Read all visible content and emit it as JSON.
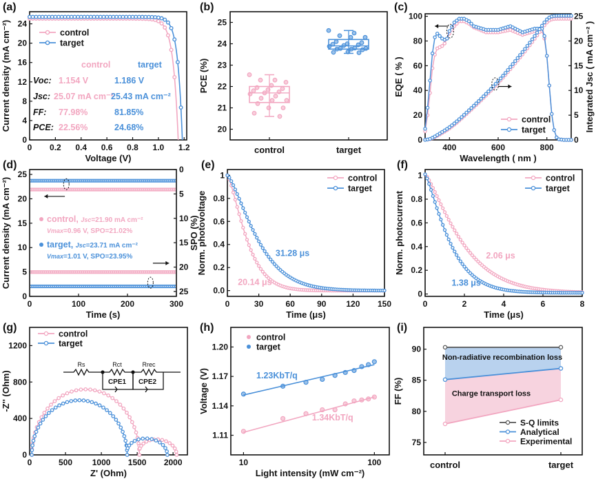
{
  "colors": {
    "control": "#f2a6c0",
    "target": "#4a90d9",
    "axis": "#111111",
    "sq": "#555555",
    "fill_blue": "#b9d2ee",
    "fill_pink": "#f7d3df"
  },
  "chart_data": [
    {
      "panel": "(a)",
      "type": "line",
      "xlabel": "Voltage (V)",
      "ylabel": "Current density (mA cm⁻²)",
      "xlim": [
        0,
        1.22
      ],
      "ylim": [
        0,
        26.5
      ],
      "xticks": [
        "0",
        "0.2",
        "0.4",
        "0.6",
        "0.8",
        "1.0",
        "1.2"
      ],
      "xtick_values": [
        0,
        0.2,
        0.4,
        0.6,
        0.8,
        1.0,
        1.2
      ],
      "yticks": [
        "0",
        "4",
        "8",
        "12",
        "16",
        "20",
        "24"
      ],
      "ytick_values": [
        0,
        4,
        8,
        12,
        16,
        20,
        24
      ],
      "legend": [
        "control",
        "target"
      ],
      "legend_position": "top-left",
      "series": [
        {
          "name": "control",
          "jsc": 25.07,
          "voc": 1.154,
          "ff": 77.98
        },
        {
          "name": "target",
          "jsc": 25.43,
          "voc": 1.186,
          "ff": 81.85
        }
      ],
      "table": {
        "headers": [
          "",
          "control",
          "target"
        ],
        "rows": [
          {
            "label": "Voc:",
            "control": "1.154 V",
            "target": "1.186 V"
          },
          {
            "label": "Jsc:",
            "control": "25.07 mA cm⁻²",
            "target": "25.43 mA cm⁻²"
          },
          {
            "label": "FF:",
            "control": "77.98%",
            "target": "81.85%"
          },
          {
            "label": "PCE:",
            "control": "22.56%",
            "target": "24.68%"
          }
        ]
      }
    },
    {
      "panel": "(b)",
      "type": "scatter",
      "ylabel": "PCE (%)",
      "ylim": [
        19.5,
        25.5
      ],
      "categories": [
        "control",
        "target"
      ],
      "yticks": [
        "20",
        "21",
        "22",
        "23",
        "24",
        "25"
      ],
      "ytick_values": [
        20,
        21,
        22,
        23,
        24,
        25
      ],
      "boxes": [
        {
          "name": "control",
          "q1": 21.25,
          "median": 21.7,
          "q3": 22.0,
          "min": 20.6,
          "max": 22.55,
          "points": [
            22.55,
            22.3,
            22.3,
            22.2,
            22.05,
            21.95,
            21.9,
            21.85,
            21.8,
            21.75,
            21.7,
            21.65,
            21.55,
            21.45,
            21.35,
            21.35,
            21.2,
            21.0,
            21.0,
            20.75,
            20.6
          ]
        },
        {
          "name": "target",
          "q1": 23.75,
          "median": 23.9,
          "q3": 24.2,
          "min": 23.55,
          "max": 24.62,
          "points": [
            24.62,
            24.5,
            24.38,
            24.3,
            24.3,
            24.1,
            24.05,
            24.0,
            23.98,
            23.95,
            23.92,
            23.88,
            23.8,
            23.78,
            23.78,
            23.75,
            23.75,
            23.72,
            23.62,
            23.6,
            23.58
          ]
        }
      ]
    },
    {
      "panel": "(c)",
      "type": "line",
      "xlabel": "Wavelength ( nm )",
      "ylabel": "EQE ( % )",
      "ylabel_right": "Integrated Jsc ( mA cm⁻² )",
      "xlim": [
        300,
        900
      ],
      "ylim": [
        0,
        102
      ],
      "ylim_right": [
        0,
        25.5
      ],
      "xticks": [
        "400",
        "600",
        "800"
      ],
      "xtick_values": [
        400,
        600,
        800
      ],
      "yticks": [
        "0",
        "20",
        "40",
        "60",
        "80",
        "100"
      ],
      "ytick_values": [
        0,
        20,
        40,
        60,
        80,
        100
      ],
      "yticks_right": [
        "0",
        "5",
        "10",
        "15",
        "20",
        "25"
      ],
      "ytick_values_right": [
        0,
        5,
        10,
        15,
        20,
        25
      ],
      "legend": [
        "control",
        "target"
      ],
      "legend_position": "bottom-right",
      "eqe_x": [
        300,
        310,
        320,
        330,
        340,
        350,
        360,
        370,
        380,
        390,
        400,
        420,
        440,
        460,
        480,
        500,
        550,
        600,
        650,
        700,
        750,
        780,
        790,
        800,
        810,
        820,
        830,
        840,
        850,
        870,
        900
      ],
      "series": [
        {
          "name": "control EQE",
          "values": [
            7,
            20,
            38,
            58,
            69,
            74,
            75,
            76,
            78,
            82,
            86,
            92,
            96,
            96,
            94,
            91,
            87,
            87,
            89,
            85,
            88,
            88,
            82,
            68,
            44,
            21,
            8,
            2,
            0.5,
            0,
            0
          ]
        },
        {
          "name": "target EQE",
          "values": [
            9,
            26,
            48,
            70,
            83,
            86,
            84,
            82,
            81,
            82,
            88,
            95,
            98,
            98,
            96,
            92,
            89,
            89,
            92,
            87,
            90,
            90,
            84,
            68,
            44,
            21,
            8,
            2,
            0.5,
            0,
            0
          ]
        }
      ],
      "integrated": [
        {
          "name": "control Jsc",
          "final": 24.5
        },
        {
          "name": "target Jsc",
          "final": 25.1
        }
      ]
    },
    {
      "panel": "(d)",
      "type": "line",
      "xlabel": "Time (s)",
      "ylabel": "Current density (mA cm⁻²)",
      "ylabel_right": "SPO (%)",
      "xlim": [
        0,
        300
      ],
      "ylim": [
        0,
        26
      ],
      "ylim_right": [
        26,
        0
      ],
      "xticks": [
        "0",
        "100",
        "200",
        "300"
      ],
      "xtick_values": [
        0,
        100,
        200,
        300
      ],
      "yticks": [
        "0",
        "5",
        "10",
        "15",
        "20",
        "25"
      ],
      "ytick_values": [
        0,
        5,
        10,
        15,
        20,
        25
      ],
      "yticks_right": [
        "0",
        "5",
        "10",
        "15",
        "20",
        "25"
      ],
      "ytick_values_right": [
        0,
        5,
        10,
        15,
        20,
        25
      ],
      "series": [
        {
          "name": "control Jsc",
          "value": 21.9
        },
        {
          "name": "target Jsc",
          "value": 23.71
        },
        {
          "name": "control SPO",
          "value": 21.02
        },
        {
          "name": "target SPO",
          "value": 23.95
        }
      ],
      "annotations": [
        {
          "series": "control",
          "line1_name": "control, ",
          "line1_var": "Jsc",
          "line1_val": "=21.90 mA cm⁻²",
          "line2_var": "Vmax",
          "line2_val": "=0.96 V, SPO=21.02%"
        },
        {
          "series": "target",
          "line1_name": "target, ",
          "line1_var": "Jsc",
          "line1_val": "=23.71 mA cm⁻²",
          "line2_var": "Vmax",
          "line2_val": "=1.01 V, SPO=23.95%"
        }
      ]
    },
    {
      "panel": "(e)",
      "type": "line",
      "xlabel": "Time (μs)",
      "ylabel": "Norm. photovoltage",
      "xlim": [
        0,
        150
      ],
      "ylim": [
        -0.05,
        1.05
      ],
      "xticks": [
        "0",
        "30",
        "60",
        "90",
        "120",
        "150"
      ],
      "xtick_values": [
        0,
        30,
        60,
        90,
        120,
        150
      ],
      "yticks": [
        "0.0",
        "0.2",
        "0.4",
        "0.6",
        "0.8",
        "1"
      ],
      "ytick_values": [
        0,
        0.2,
        0.4,
        0.6,
        0.8,
        1
      ],
      "legend": [
        "control",
        "target"
      ],
      "legend_position": "top-right",
      "series": [
        {
          "name": "control",
          "tau": 20.14,
          "label": "20.14 μs"
        },
        {
          "name": "target",
          "tau": 31.28,
          "label": "31.28 μs"
        }
      ]
    },
    {
      "panel": "(f)",
      "type": "line",
      "xlabel": "Time (μs)",
      "ylabel": "Norm. photocurrent",
      "xlim": [
        0,
        8
      ],
      "ylim": [
        -0.02,
        1.05
      ],
      "xticks": [
        "0",
        "2",
        "4",
        "6",
        "8"
      ],
      "xtick_values": [
        0,
        2,
        4,
        6,
        8
      ],
      "yticks": [
        "0",
        "0.2",
        "0.4",
        "0.6",
        "0.8",
        "1"
      ],
      "ytick_values": [
        0,
        0.2,
        0.4,
        0.6,
        0.8,
        1
      ],
      "legend": [
        "control",
        "target"
      ],
      "legend_position": "top-right",
      "series": [
        {
          "name": "control",
          "tau": 2.06,
          "label": "2.06 μs"
        },
        {
          "name": "target",
          "tau": 1.38,
          "label": "1.38 μs"
        }
      ]
    },
    {
      "panel": "(g)",
      "type": "scatter",
      "xlabel": "Z' (Ohm)",
      "ylabel": "-Z'' (Ohm)",
      "xlim": [
        0,
        2200
      ],
      "ylim": [
        0,
        1400
      ],
      "xticks": [
        "0",
        "500",
        "1000",
        "1500",
        "2000"
      ],
      "xtick_values": [
        0,
        500,
        1000,
        1500,
        2000
      ],
      "yticks": [
        "0",
        "400",
        "800",
        "1200"
      ],
      "ytick_values": [
        0,
        400,
        800,
        1200
      ],
      "legend": [
        "control",
        "target"
      ],
      "legend_position": "top-left",
      "series": [
        {
          "name": "control",
          "arc1": {
            "start": 30,
            "end": 1530,
            "peak": 720
          },
          "arc2": {
            "start": 1530,
            "end": 2050,
            "peak": 150
          }
        },
        {
          "name": "target",
          "arc1": {
            "start": 30,
            "end": 1360,
            "peak": 600
          },
          "arc2": {
            "start": 1360,
            "end": 1920,
            "peak": 160
          }
        }
      ],
      "circuit": {
        "labels": [
          "Rs",
          "Rct",
          "Rrec"
        ],
        "cpe": [
          "CPE1",
          "CPE2"
        ]
      }
    },
    {
      "panel": "(h)",
      "type": "scatter",
      "xlabel": "Light intensity (mW cm⁻²)",
      "ylabel": "Voltage (V)",
      "xscale": "log",
      "xlim": [
        8,
        130
      ],
      "ylim": [
        1.09,
        1.22
      ],
      "xticks": [
        "10",
        "100"
      ],
      "xtick_values": [
        10,
        100
      ],
      "yticks": [
        "1.11",
        "1.14",
        "1.17",
        "1.20"
      ],
      "ytick_values": [
        1.11,
        1.14,
        1.17,
        1.2
      ],
      "legend": [
        "control",
        "target"
      ],
      "legend_position": "top-left",
      "x": [
        10,
        20,
        30,
        40,
        50,
        60,
        70,
        80,
        90,
        100
      ],
      "series": [
        {
          "name": "control",
          "values": [
            1.114,
            1.127,
            1.132,
            1.136,
            1.136,
            1.142,
            1.145,
            1.146,
            1.147,
            1.149
          ],
          "fit": [
            1.113,
            1.149
          ],
          "label": "1.34KbT/q"
        },
        {
          "name": "target",
          "values": [
            1.152,
            1.16,
            1.164,
            1.167,
            1.171,
            1.174,
            1.176,
            1.18,
            1.182,
            1.185
          ],
          "fit": [
            1.151,
            1.182
          ],
          "label": "1.23KbT/q"
        }
      ]
    },
    {
      "panel": "(i)",
      "type": "line",
      "ylabel": "FF (%)",
      "ylim": [
        73,
        93.5
      ],
      "categories": [
        "control",
        "target"
      ],
      "yticks": [
        "75",
        "80",
        "85",
        "90"
      ],
      "ytick_values": [
        75,
        80,
        85,
        90
      ],
      "legend": [
        "S-Q limits",
        "Analytical",
        "Experimental"
      ],
      "legend_position": "bottom-right",
      "series": [
        {
          "name": "S-Q limits",
          "values": [
            90.3,
            90.3
          ]
        },
        {
          "name": "Analytical",
          "values": [
            85.1,
            86.9
          ]
        },
        {
          "name": "Experimental",
          "values": [
            77.98,
            81.85
          ]
        }
      ],
      "regions": [
        "Non-radiative recombination loss",
        "Charge transport loss"
      ]
    }
  ]
}
